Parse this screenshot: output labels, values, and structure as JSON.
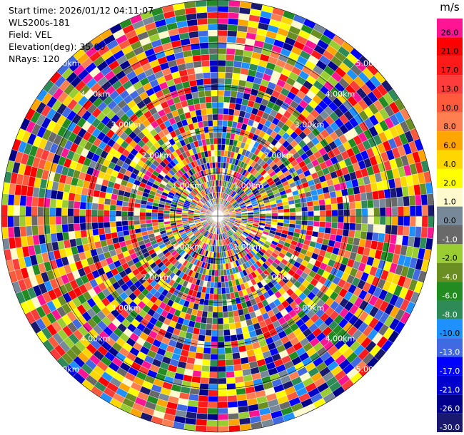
{
  "info": {
    "start_time": "Start time: 2026/01/12 04:11:07",
    "instrument": "WLS200s-181",
    "field": "Field: VEL",
    "elevation": "Elevation(deg): 35.00",
    "nrays": "NRays: 120"
  },
  "chart_data": {
    "type": "heatmap",
    "projection": "polar-ppi",
    "field": "VEL",
    "units": "m/s",
    "n_rays": 120,
    "n_gates": 36,
    "max_range_km": 5.0,
    "range_rings": [
      {
        "km": 1.0,
        "label": "1.00km"
      },
      {
        "km": 2.0,
        "label": "2.00km"
      },
      {
        "km": 3.0,
        "label": "3.00km"
      },
      {
        "km": 4.0,
        "label": "4.00km"
      },
      {
        "km": 5.0,
        "label": "5.00km"
      }
    ],
    "ring_label_angles_deg": [
      45,
      135,
      225,
      315
    ],
    "colorbar": {
      "title": "m/s",
      "bins": [
        {
          "label": "26.0",
          "color": "#ff1493"
        },
        {
          "label": "21.0",
          "color": "#ff0000"
        },
        {
          "label": "17.0",
          "color": "#ff1a1a"
        },
        {
          "label": "13.0",
          "color": "#ff3c3c"
        },
        {
          "label": "10.0",
          "color": "#ff5a3c"
        },
        {
          "label": "8.0",
          "color": "#ff7f50"
        },
        {
          "label": "6.0",
          "color": "#ffa500"
        },
        {
          "label": "4.0",
          "color": "#ffd700"
        },
        {
          "label": "2.0",
          "color": "#ffff00"
        },
        {
          "label": "1.0",
          "color": "#fffacd"
        },
        {
          "label": "0.0",
          "color": "#778899"
        },
        {
          "label": "-1.0",
          "color": "#696969"
        },
        {
          "label": "-2.0",
          "color": "#9acd32"
        },
        {
          "label": "-4.0",
          "color": "#6b8e23"
        },
        {
          "label": "-6.0",
          "color": "#228b22"
        },
        {
          "label": "-8.0",
          "color": "#2e8b57"
        },
        {
          "label": "-10.0",
          "color": "#1e90ff"
        },
        {
          "label": "-13.0",
          "color": "#4169e1"
        },
        {
          "label": "-17.0",
          "color": "#0000ff"
        },
        {
          "label": "-21.0",
          "color": "#0000cd"
        },
        {
          "label": "-26.0",
          "color": "#00008b"
        },
        {
          "label": "-30.0",
          "color": "#191970"
        }
      ]
    }
  }
}
